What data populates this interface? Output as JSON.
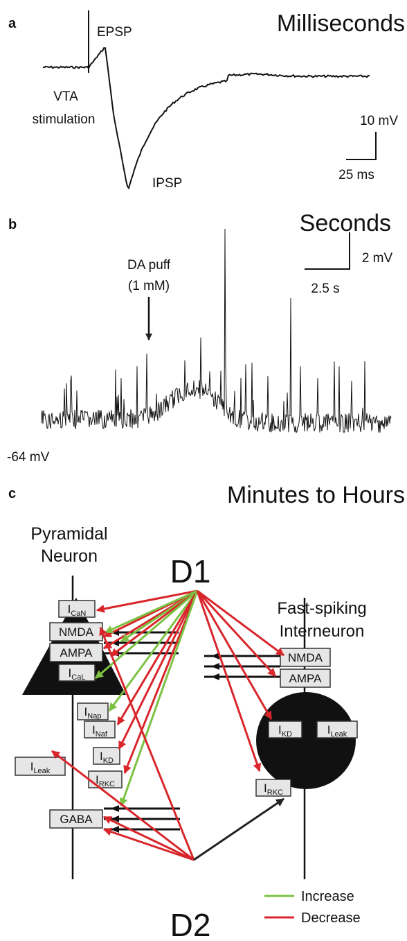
{
  "panels": {
    "a": {
      "letter": "a",
      "title": "Milliseconds",
      "labels": {
        "epsp": "EPSP",
        "vta1": "VTA",
        "vta2": "stimulation",
        "ipsp": "IPSP",
        "scale_y": "10 mV",
        "scale_x": "25 ms"
      }
    },
    "b": {
      "letter": "b",
      "title": "Seconds",
      "labels": {
        "puff1": "DA puff",
        "puff2": "(1 mM)",
        "scale_y": "2 mV",
        "scale_x": "2.5 s",
        "baseline": "-64 mV"
      }
    },
    "c": {
      "letter": "c",
      "title": "Minutes to Hours",
      "pyramidal": [
        "Pyramidal",
        "Neuron"
      ],
      "interneuron": [
        "Fast-spiking",
        "Interneuron"
      ],
      "d1": "D1",
      "d2": "D2",
      "pyr_boxes": [
        {
          "main": "I",
          "sub": "CaN"
        },
        {
          "main": "NMDA"
        },
        {
          "main": "AMPA"
        },
        {
          "main": "I",
          "sub": "CaL"
        },
        {
          "main": "I",
          "sub": "Nap"
        },
        {
          "main": "I",
          "sub": "Naf"
        },
        {
          "main": "I",
          "sub": "KD"
        },
        {
          "main": "I",
          "sub": "RKC"
        },
        {
          "main": "I",
          "sub": "Leak"
        },
        {
          "main": "GABA"
        }
      ],
      "int_boxes": [
        {
          "main": "NMDA"
        },
        {
          "main": "AMPA"
        },
        {
          "main": "I",
          "sub": "KD"
        },
        {
          "main": "I",
          "sub": "Leak"
        },
        {
          "main": "I",
          "sub": "RKC"
        }
      ],
      "legend": {
        "increase": "Increase",
        "decrease": "Decrease"
      }
    }
  }
}
